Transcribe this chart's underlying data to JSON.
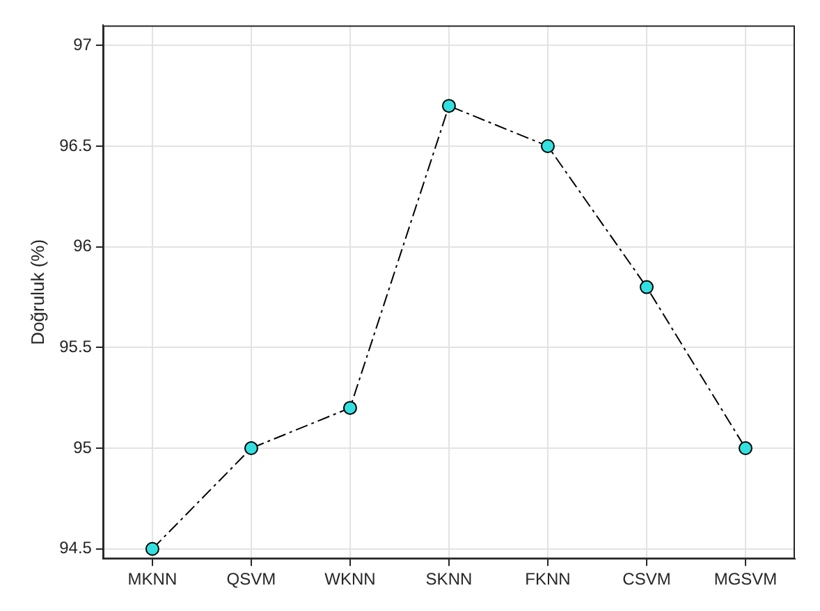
{
  "chart_data": {
    "type": "line",
    "ylabel": "Doğruluk (%)",
    "categories": [
      "MKNN",
      "QSVM",
      "WKNN",
      "SKNN",
      "FKNN",
      "CSVM",
      "MGSVM"
    ],
    "series": [
      {
        "color": "#000000",
        "colors": [
          "#33e0e0",
          "#33e0e0",
          "#33e0e0",
          "#33e0e0",
          "#33e0e0",
          "#33e0e0",
          "#33e0e0"
        ],
        "values": [
          94.5,
          95.0,
          95.2,
          96.7,
          96.5,
          95.8,
          95.0
        ]
      }
    ],
    "ylim": [
      94.45,
      97.1
    ],
    "yticks": [
      94.5,
      95,
      95.5,
      96,
      96.5,
      97
    ],
    "grid": true,
    "legend": false,
    "marker": "circle",
    "line_style": "dashed"
  }
}
